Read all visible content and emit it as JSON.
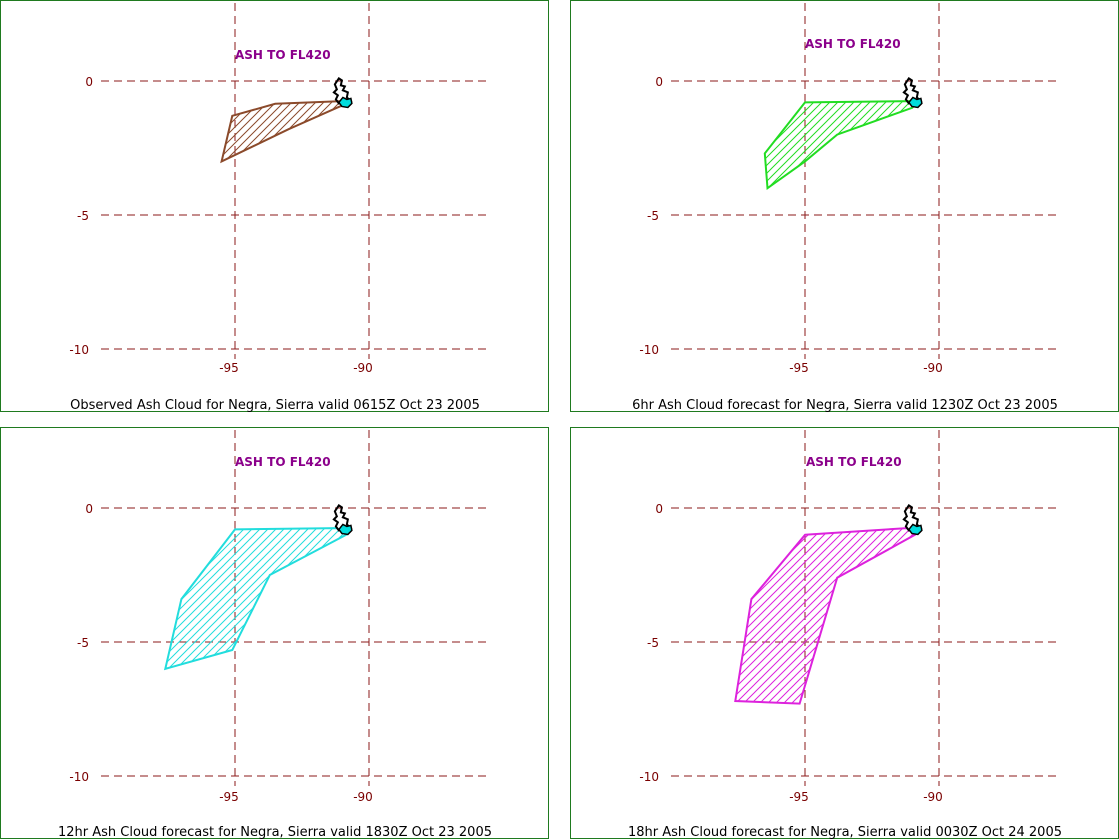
{
  "page": {
    "panels": [
      {
        "id": "observed",
        "title": "Observed Ash Cloud for Negra,  Sierra valid 0615Z Oct 23 2005",
        "header": "ASH TO FL420",
        "color": "#8b4a2b",
        "polygon": [
          [
            -95.1,
            -1.3
          ],
          [
            -93.5,
            -0.85
          ],
          [
            -91.0,
            -0.75
          ],
          [
            -90.85,
            -0.85
          ],
          [
            -91.2,
            -1.0
          ],
          [
            -93.0,
            -1.8
          ],
          [
            -95.5,
            -3.0
          ]
        ],
        "x_ticks": [
          "-95",
          "-90"
        ],
        "y_ticks": [
          "0",
          "-5",
          "-10"
        ]
      },
      {
        "id": "forecast-6hr",
        "title": "6hr Ash Cloud forecast for Negra,  Sierra valid 1230Z Oct 23 2005",
        "header": "ASH TO FL420",
        "color": "#22dd22",
        "polygon": [
          [
            -95.0,
            -0.8
          ],
          [
            -91.0,
            -0.75
          ],
          [
            -90.85,
            -0.85
          ],
          [
            -91.0,
            -1.0
          ],
          [
            -93.8,
            -2.0
          ],
          [
            -95.0,
            -3.0
          ],
          [
            -96.4,
            -4.0
          ],
          [
            -96.5,
            -2.7
          ]
        ],
        "x_ticks": [
          "-95",
          "-90"
        ],
        "y_ticks": [
          "0",
          "-5",
          "-10"
        ]
      },
      {
        "id": "forecast-12hr",
        "title": "12hr Ash Cloud forecast for Negra,  Sierra valid 1830Z Oct 23 2005",
        "header": "ASH TO FL420",
        "color": "#22dddd",
        "polygon": [
          [
            -95.0,
            -0.8
          ],
          [
            -91.2,
            -0.75
          ],
          [
            -90.85,
            -1.0
          ],
          [
            -93.7,
            -2.5
          ],
          [
            -95.1,
            -5.3
          ],
          [
            -97.6,
            -6.0
          ],
          [
            -97.0,
            -3.4
          ]
        ],
        "x_ticks": [
          "-95",
          "-90"
        ],
        "y_ticks": [
          "0",
          "-5",
          "-10"
        ]
      },
      {
        "id": "forecast-18hr",
        "title": "18hr Ash Cloud forecast for Negra,  Sierra valid 0030Z Oct 24 2005",
        "header": "ASH TO FL420",
        "color": "#dd22dd",
        "polygon": [
          [
            -95.0,
            -1.0
          ],
          [
            -91.2,
            -0.75
          ],
          [
            -90.9,
            -1.0
          ],
          [
            -93.8,
            -2.6
          ],
          [
            -95.2,
            -7.3
          ],
          [
            -97.6,
            -7.2
          ],
          [
            -97.0,
            -3.4
          ]
        ],
        "x_ticks": [
          "-95",
          "-90"
        ],
        "y_ticks": [
          "0",
          "-5",
          "-10"
        ]
      }
    ]
  },
  "map": {
    "lon_range": [
      -100,
      -85
    ],
    "lat_range": [
      -12,
      2
    ],
    "grid_lons": [
      -95,
      -90
    ],
    "grid_lats": [
      0,
      -5,
      -10
    ],
    "grid_color": "#8b1a1a",
    "label_color": "#7a0000",
    "header_color": "#8b008b",
    "volcano_marker_color": "#00dddd",
    "outline_color": "#000000",
    "frame_color": "#1f7a1f"
  }
}
